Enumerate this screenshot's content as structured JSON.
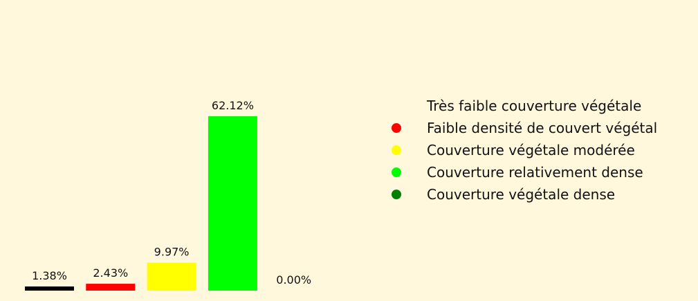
{
  "chart_data": {
    "type": "bar",
    "categories": [
      "Très faible couverture végétale",
      "Faible densité de couvert végétal",
      "Couverture végétale modérée",
      "Couverture relativement dense",
      "Couverture végétale dense"
    ],
    "values": [
      1.38,
      2.43,
      9.97,
      62.12,
      0.0
    ],
    "data_labels": [
      "1.38%",
      "2.43%",
      "9.97%",
      "62.12%",
      "0.00%"
    ],
    "colors": [
      "#000000",
      "#ff0000",
      "#ffff00",
      "#00ff00",
      "#008000"
    ],
    "legend_colors": [
      "none",
      "#ff0000",
      "#ffff00",
      "#00ff00",
      "#008000"
    ],
    "ylim": [
      0,
      62.12
    ],
    "grid": false,
    "legend_position": "right",
    "background": "#fff8dc"
  }
}
